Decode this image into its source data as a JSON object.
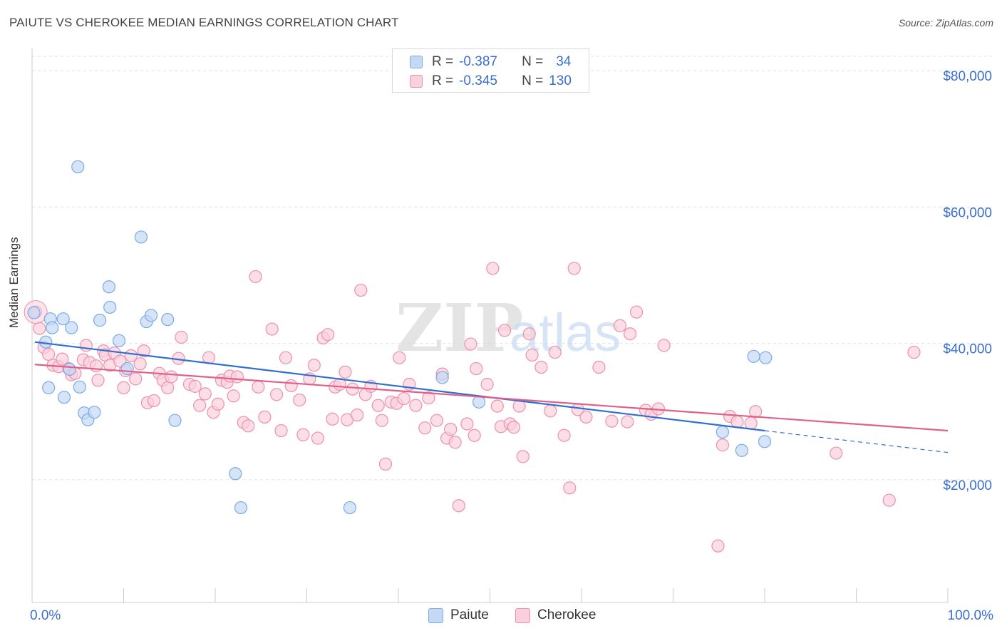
{
  "title": "PAIUTE VS CHEROKEE MEDIAN EARNINGS CORRELATION CHART",
  "source": "Source: ZipAtlas.com",
  "watermark": {
    "zip": "ZIP",
    "atlas": "atlas"
  },
  "correlation_box": {
    "rows": [
      {
        "r_label": "R =",
        "r_value": "-0.387",
        "n_label": "N =",
        "n_value": "34",
        "color": "#a8c5f0"
      },
      {
        "r_label": "R =",
        "r_value": "-0.345",
        "n_label": "N =",
        "n_value": "130",
        "color": "#f5b8cb"
      }
    ]
  },
  "legend": {
    "paiute": "Paiute",
    "cherokee": "Cherokee"
  },
  "chart_data": {
    "type": "scatter",
    "ylabel": "Median Earnings",
    "xlim": [
      0,
      100
    ],
    "ylim": [
      2000,
      82000
    ],
    "x_tick_labels": [
      "0.0%",
      "100.0%"
    ],
    "y_ticks": [
      20000,
      40000,
      60000,
      80000
    ],
    "y_tick_labels": [
      "$20,000",
      "$40,000",
      "$60,000",
      "$80,000"
    ],
    "grid": true,
    "series": [
      {
        "name": "Paiute",
        "color": "#7aaae8",
        "fill": "#c5d9f5",
        "trend": {
          "x0": 0.3,
          "y0": 40200,
          "x1": 80,
          "y1": 27200,
          "dash_to_x": 100,
          "dash_to_y": 24000,
          "color": "#2f6fd0"
        },
        "points": [
          [
            0.2,
            44500
          ],
          [
            1.5,
            40200
          ],
          [
            2.0,
            43600
          ],
          [
            1.8,
            33500
          ],
          [
            2.2,
            42300
          ],
          [
            3.4,
            43600
          ],
          [
            3.5,
            32100
          ],
          [
            4.1,
            36200
          ],
          [
            4.3,
            42300
          ],
          [
            5.2,
            33600
          ],
          [
            5.0,
            65900
          ],
          [
            5.7,
            29800
          ],
          [
            6.1,
            28800
          ],
          [
            6.8,
            29900
          ],
          [
            7.4,
            43400
          ],
          [
            8.4,
            48300
          ],
          [
            8.5,
            45300
          ],
          [
            9.5,
            40400
          ],
          [
            10.4,
            36300
          ],
          [
            11.9,
            55600
          ],
          [
            12.5,
            43200
          ],
          [
            13.0,
            44100
          ],
          [
            14.8,
            43500
          ],
          [
            15.6,
            28700
          ],
          [
            22.2,
            20900
          ],
          [
            22.8,
            15900
          ],
          [
            34.7,
            15900
          ],
          [
            44.8,
            35000
          ],
          [
            48.8,
            31400
          ],
          [
            78.8,
            38100
          ],
          [
            80.1,
            37900
          ],
          [
            75.4,
            27000
          ],
          [
            77.5,
            24300
          ],
          [
            80.0,
            25600
          ]
        ]
      },
      {
        "name": "Cherokee",
        "color": "#ee90ae",
        "fill": "#f9d0dc",
        "trend": {
          "x0": 0.3,
          "y0": 36900,
          "x1": 100,
          "y1": 27200,
          "color": "#e0608a"
        },
        "points": [
          [
            0.4,
            44600
          ],
          [
            0.8,
            42200
          ],
          [
            1.3,
            39400
          ],
          [
            1.8,
            38400
          ],
          [
            2.3,
            36800
          ],
          [
            2.9,
            36600
          ],
          [
            3.3,
            37700
          ],
          [
            4.0,
            36300
          ],
          [
            4.3,
            35400
          ],
          [
            4.7,
            35600
          ],
          [
            5.6,
            37600
          ],
          [
            5.9,
            39700
          ],
          [
            6.3,
            37200
          ],
          [
            7.0,
            36700
          ],
          [
            7.2,
            34600
          ],
          [
            7.8,
            38900
          ],
          [
            8.0,
            38300
          ],
          [
            8.5,
            36800
          ],
          [
            9.0,
            38600
          ],
          [
            9.6,
            37400
          ],
          [
            10.0,
            33500
          ],
          [
            10.2,
            36000
          ],
          [
            10.8,
            38200
          ],
          [
            11.3,
            34800
          ],
          [
            11.8,
            37000
          ],
          [
            12.2,
            38900
          ],
          [
            12.6,
            31300
          ],
          [
            13.3,
            31600
          ],
          [
            13.9,
            35600
          ],
          [
            14.3,
            34600
          ],
          [
            14.8,
            33500
          ],
          [
            15.2,
            35100
          ],
          [
            16.0,
            37800
          ],
          [
            16.3,
            40900
          ],
          [
            17.2,
            34000
          ],
          [
            17.8,
            33700
          ],
          [
            18.3,
            30900
          ],
          [
            18.9,
            32600
          ],
          [
            19.3,
            37900
          ],
          [
            19.8,
            29900
          ],
          [
            20.3,
            31100
          ],
          [
            20.7,
            34600
          ],
          [
            21.3,
            34300
          ],
          [
            21.6,
            35200
          ],
          [
            22.0,
            32300
          ],
          [
            22.4,
            35100
          ],
          [
            23.1,
            28400
          ],
          [
            23.6,
            27900
          ],
          [
            24.4,
            49800
          ],
          [
            24.7,
            33600
          ],
          [
            25.4,
            29200
          ],
          [
            26.2,
            42100
          ],
          [
            26.7,
            32500
          ],
          [
            27.2,
            27200
          ],
          [
            27.7,
            37900
          ],
          [
            28.3,
            33800
          ],
          [
            29.2,
            31700
          ],
          [
            29.6,
            26600
          ],
          [
            30.3,
            34800
          ],
          [
            30.8,
            36800
          ],
          [
            31.2,
            26100
          ],
          [
            31.8,
            40800
          ],
          [
            32.3,
            41300
          ],
          [
            32.8,
            28900
          ],
          [
            33.1,
            33600
          ],
          [
            33.6,
            34000
          ],
          [
            34.2,
            35800
          ],
          [
            34.4,
            28800
          ],
          [
            35.0,
            33300
          ],
          [
            35.5,
            29500
          ],
          [
            35.9,
            47800
          ],
          [
            36.4,
            32500
          ],
          [
            37.0,
            33700
          ],
          [
            37.8,
            30900
          ],
          [
            38.2,
            28700
          ],
          [
            38.6,
            22300
          ],
          [
            39.2,
            31400
          ],
          [
            39.8,
            31200
          ],
          [
            40.1,
            37900
          ],
          [
            40.6,
            31900
          ],
          [
            41.2,
            34000
          ],
          [
            41.9,
            30900
          ],
          [
            42.9,
            27600
          ],
          [
            43.3,
            32000
          ],
          [
            44.2,
            28700
          ],
          [
            44.8,
            35500
          ],
          [
            45.3,
            26100
          ],
          [
            45.7,
            27400
          ],
          [
            46.2,
            25500
          ],
          [
            46.6,
            16200
          ],
          [
            47.5,
            28200
          ],
          [
            47.9,
            39900
          ],
          [
            48.3,
            26500
          ],
          [
            48.5,
            36300
          ],
          [
            49.7,
            34000
          ],
          [
            50.3,
            51000
          ],
          [
            50.8,
            30800
          ],
          [
            51.2,
            27800
          ],
          [
            51.6,
            41900
          ],
          [
            52.2,
            28200
          ],
          [
            52.6,
            27700
          ],
          [
            53.2,
            30800
          ],
          [
            53.6,
            23400
          ],
          [
            54.3,
            41400
          ],
          [
            54.6,
            38300
          ],
          [
            55.6,
            36500
          ],
          [
            56.6,
            30100
          ],
          [
            57.1,
            38700
          ],
          [
            58.1,
            26500
          ],
          [
            58.7,
            18800
          ],
          [
            59.2,
            51000
          ],
          [
            59.6,
            30300
          ],
          [
            60.5,
            29200
          ],
          [
            61.9,
            36500
          ],
          [
            63.3,
            28600
          ],
          [
            64.2,
            42600
          ],
          [
            65.0,
            28500
          ],
          [
            65.3,
            41400
          ],
          [
            66.0,
            44600
          ],
          [
            67.0,
            30200
          ],
          [
            67.6,
            29600
          ],
          [
            68.4,
            30400
          ],
          [
            69.0,
            39700
          ],
          [
            74.9,
            10300
          ],
          [
            75.4,
            25100
          ],
          [
            76.2,
            29300
          ],
          [
            77.0,
            28500
          ],
          [
            78.5,
            28300
          ],
          [
            79.0,
            30000
          ],
          [
            87.8,
            23900
          ],
          [
            93.6,
            17000
          ],
          [
            96.3,
            38700
          ]
        ]
      }
    ]
  }
}
